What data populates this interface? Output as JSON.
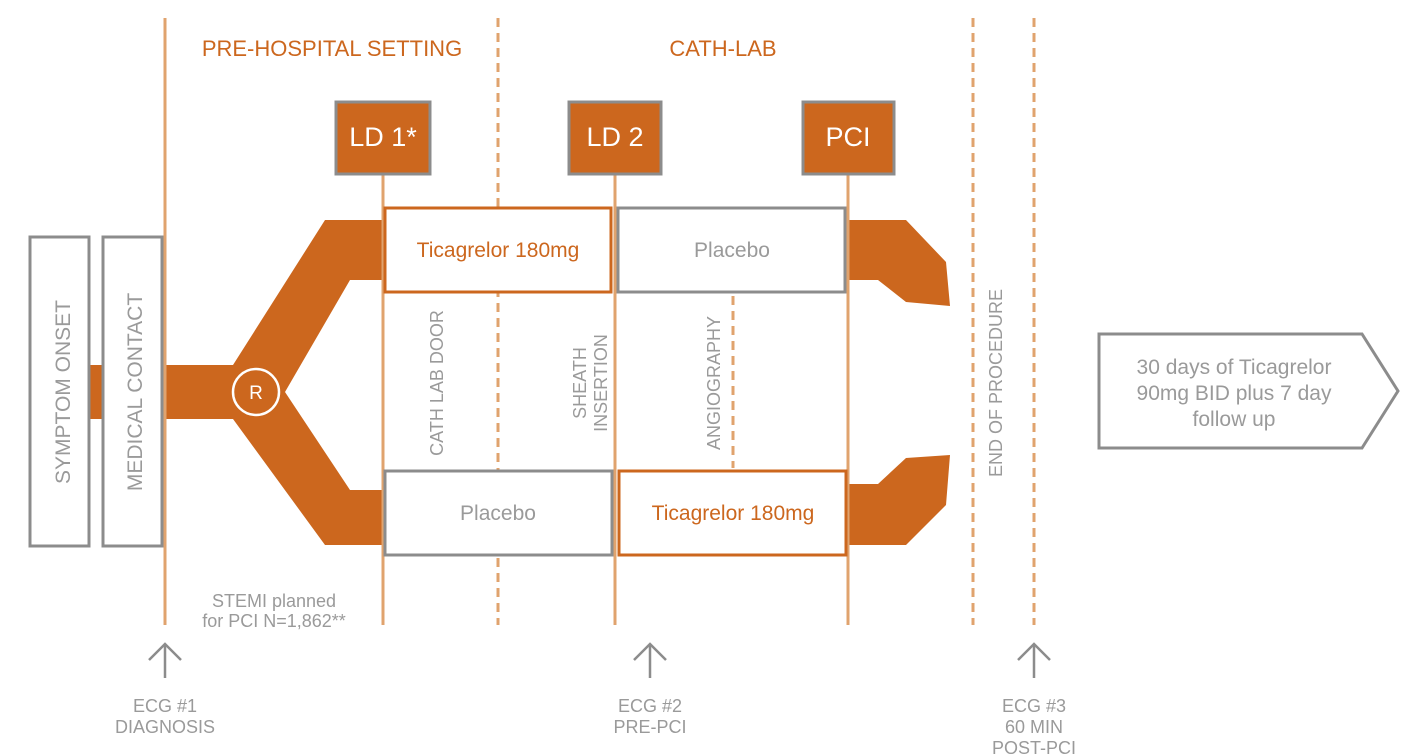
{
  "colors": {
    "orange": "#cc671e",
    "orange_line": "#e0a36e",
    "gray": "#8c8c8c",
    "gray_text": "#9a9a9a",
    "white": "#ffffff"
  },
  "sections": {
    "pre_hospital": "PRE-HOSPITAL SETTING",
    "cath_lab": "CATH-LAB"
  },
  "milestones": {
    "ld1": "LD 1*",
    "ld2": "LD 2",
    "pci": "PCI"
  },
  "left_boxes": {
    "symptom_onset": "SYMPTOM ONSET",
    "medical_contact": "MEDICAL CONTACT"
  },
  "randomization": "R",
  "arms": {
    "top_first": "Ticagrelor 180mg",
    "top_second": "Placebo",
    "bottom_first": "Placebo",
    "bottom_second": "Ticagrelor 180mg"
  },
  "events": {
    "cath_lab_door": "CATH LAB DOOR",
    "sheath_line1": "SHEATH",
    "sheath_line2": "INSERTION",
    "angiography": "ANGIOGRAPHY",
    "end_of_procedure": "END OF PROCEDURE"
  },
  "population": {
    "line1": "STEMI planned",
    "line2": "for PCI N=1,862**"
  },
  "follow_up": {
    "line1": "30 days of Ticagrelor",
    "line2": "90mg BID plus 7 day",
    "line3": "follow up"
  },
  "ecg": {
    "ecg1": {
      "line1": "ECG #1",
      "line2": "DIAGNOSIS"
    },
    "ecg2": {
      "line1": "ECG #2",
      "line2": "PRE-PCI"
    },
    "ecg3": {
      "line1": "ECG #3",
      "line2": "60 MIN",
      "line3": "POST-PCI"
    }
  }
}
